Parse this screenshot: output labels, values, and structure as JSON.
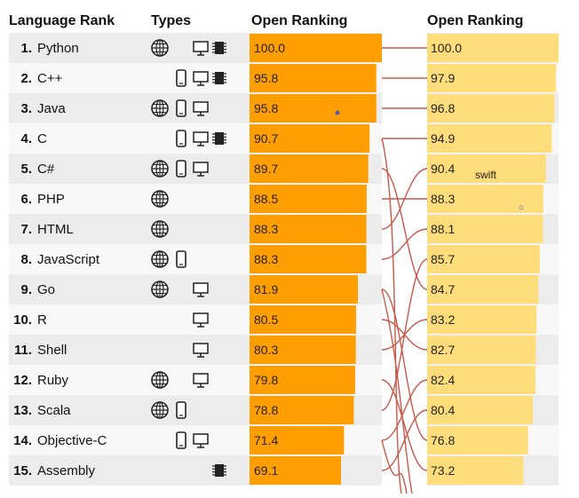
{
  "headers": {
    "language_rank": "Language Rank",
    "types": "Types",
    "open_ranking_left": "Open Ranking",
    "open_ranking_right": "Open Ranking"
  },
  "colors": {
    "left_bar": "#ff9e00",
    "right_bar": "#ffdd7a",
    "connector": "#c8594a",
    "row_shade": "#ececec",
    "row_plain": "#f8f8f8"
  },
  "annotations": {
    "swift_label": "swift"
  },
  "rows": [
    {
      "rank": "1.",
      "lang": "Python",
      "icons": [
        "globe-icon",
        "desktop-icon",
        "chip-icon"
      ]
    },
    {
      "rank": "2.",
      "lang": "C++",
      "icons": [
        "mobile-icon",
        "desktop-icon",
        "chip-icon"
      ]
    },
    {
      "rank": "3.",
      "lang": "Java",
      "icons": [
        "globe-icon",
        "mobile-icon",
        "desktop-icon"
      ]
    },
    {
      "rank": "4.",
      "lang": "C",
      "icons": [
        "mobile-icon",
        "desktop-icon",
        "chip-icon"
      ]
    },
    {
      "rank": "5.",
      "lang": "C#",
      "icons": [
        "globe-icon",
        "mobile-icon",
        "desktop-icon"
      ]
    },
    {
      "rank": "6.",
      "lang": "PHP",
      "icons": [
        "globe-icon"
      ]
    },
    {
      "rank": "7.",
      "lang": "HTML",
      "icons": [
        "globe-icon"
      ]
    },
    {
      "rank": "8.",
      "lang": "JavaScript",
      "icons": [
        "globe-icon",
        "mobile-icon"
      ]
    },
    {
      "rank": "9.",
      "lang": "Go",
      "icons": [
        "globe-icon",
        "desktop-icon"
      ]
    },
    {
      "rank": "10.",
      "lang": "R",
      "icons": [
        "desktop-icon"
      ]
    },
    {
      "rank": "11.",
      "lang": "Shell",
      "icons": [
        "desktop-icon"
      ]
    },
    {
      "rank": "12.",
      "lang": "Ruby",
      "icons": [
        "globe-icon",
        "desktop-icon"
      ]
    },
    {
      "rank": "13.",
      "lang": "Scala",
      "icons": [
        "globe-icon",
        "mobile-icon"
      ]
    },
    {
      "rank": "14.",
      "lang": "Objective-C",
      "icons": [
        "mobile-icon",
        "desktop-icon"
      ]
    },
    {
      "rank": "15.",
      "lang": "Assembly",
      "icons": [
        "chip-icon"
      ]
    }
  ],
  "chart_data": {
    "type": "bar",
    "xlim": [
      0,
      100
    ],
    "left_series": {
      "name": "Open Ranking",
      "values": [
        100.0,
        95.8,
        95.8,
        90.7,
        89.7,
        88.5,
        88.3,
        88.3,
        81.9,
        80.5,
        80.3,
        79.8,
        78.8,
        71.4,
        69.1
      ],
      "labels": [
        "100.0",
        "95.8",
        "95.8",
        "90.7",
        "89.7",
        "88.5",
        "88.3",
        "88.3",
        "81.9",
        "80.5",
        "80.3",
        "79.8",
        "78.8",
        "71.4",
        "69.1"
      ]
    },
    "right_series": {
      "name": "Open Ranking",
      "values": [
        100.0,
        97.9,
        96.8,
        94.9,
        90.4,
        88.3,
        88.1,
        85.7,
        84.7,
        83.2,
        82.7,
        82.4,
        80.4,
        76.8,
        73.2
      ],
      "labels": [
        "100.0",
        "97.9",
        "96.8",
        "94.9",
        "90.4",
        "88.3",
        "88.1",
        "85.7",
        "84.7",
        "83.2",
        "82.7",
        "82.4",
        "80.4",
        "76.8",
        "73.2"
      ]
    },
    "connectors": [
      {
        "from": 0,
        "to": 0
      },
      {
        "from": 1,
        "to": 1
      },
      {
        "from": 2,
        "to": 2
      },
      {
        "from": 3,
        "to": 3
      },
      {
        "from": 4,
        "to": 8
      },
      {
        "from": 5,
        "to": 5
      },
      {
        "from": 6,
        "to": 4
      },
      {
        "from": 7,
        "to": 6
      },
      {
        "from": 8,
        "to": 13
      },
      {
        "from": 9,
        "to": 10
      },
      {
        "from": 10,
        "to": 9
      },
      {
        "from": 11,
        "to": 14
      },
      {
        "from": 12,
        "to": 7
      },
      {
        "from": 13,
        "to": 11
      },
      {
        "from": 14,
        "to": 12
      }
    ],
    "connector_overflow_rows": [
      3,
      8,
      13
    ]
  }
}
